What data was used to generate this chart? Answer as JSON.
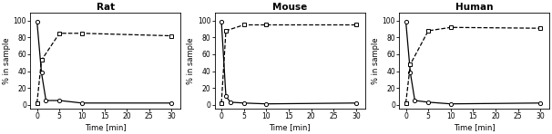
{
  "panels": [
    {
      "title": "Rat",
      "solid_x": [
        0,
        1,
        2,
        5,
        10,
        30
      ],
      "solid_y": [
        99,
        38,
        5,
        5,
        2,
        2
      ],
      "dashed_x": [
        0,
        1,
        5,
        10,
        30
      ],
      "dashed_y": [
        2,
        53,
        85,
        85,
        82
      ]
    },
    {
      "title": "Mouse",
      "solid_x": [
        0,
        1,
        2,
        5,
        10,
        30
      ],
      "solid_y": [
        99,
        10,
        3,
        2,
        1,
        2
      ],
      "dashed_x": [
        0,
        1,
        5,
        10,
        30
      ],
      "dashed_y": [
        2,
        88,
        95,
        95,
        95
      ]
    },
    {
      "title": "Human",
      "solid_x": [
        0,
        1,
        2,
        5,
        10,
        30
      ],
      "solid_y": [
        99,
        38,
        5,
        3,
        1,
        2
      ],
      "dashed_x": [
        0,
        1,
        5,
        10,
        30
      ],
      "dashed_y": [
        2,
        48,
        88,
        92,
        91
      ]
    }
  ],
  "xlabel": "Time [min]",
  "ylabel": "% in sample",
  "xlim": [
    -1.5,
    32
  ],
  "ylim": [
    -5,
    110
  ],
  "xticks": [
    0,
    5,
    10,
    15,
    20,
    25,
    30
  ],
  "yticks": [
    0,
    20,
    40,
    60,
    80,
    100
  ],
  "line_color": "#000000",
  "marker_solid": "o",
  "marker_dashed": "s",
  "markersize": 3.0,
  "linewidth": 0.9,
  "title_fontsize": 7.5,
  "label_fontsize": 6.0,
  "tick_fontsize": 5.5
}
